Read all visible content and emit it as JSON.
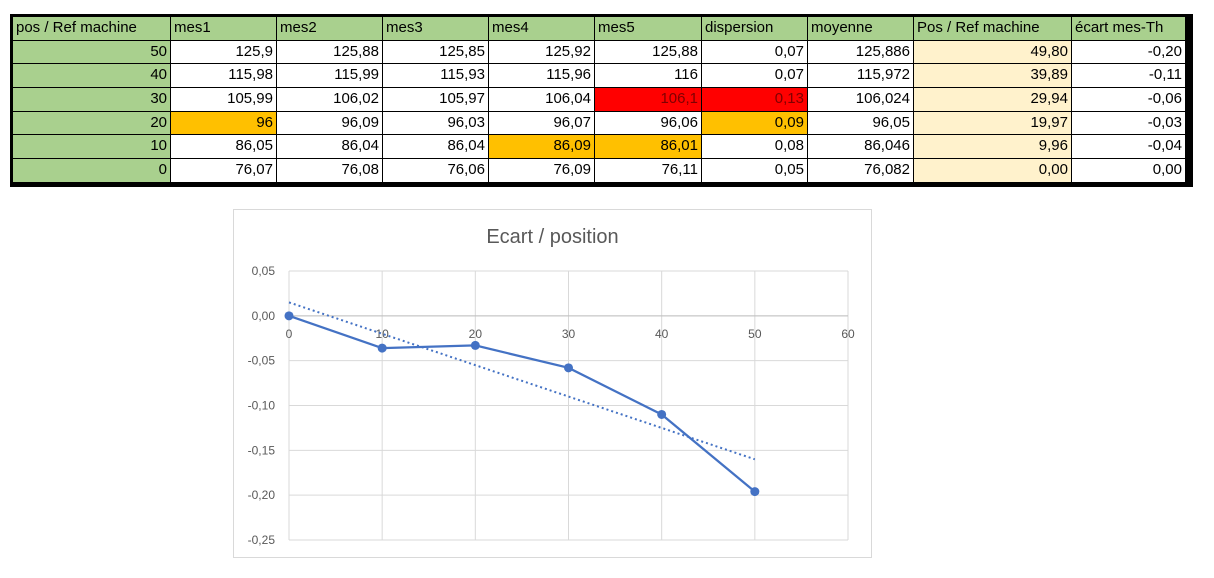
{
  "table": {
    "headers": [
      "pos / Ref machine",
      "mes1",
      "mes2",
      "mes3",
      "mes4",
      "mes5",
      "dispersion",
      "moyenne",
      "Pos / Ref machine",
      "écart mes-Th"
    ],
    "rows": [
      [
        "50",
        "125,9",
        "125,88",
        "125,85",
        "125,92",
        "125,88",
        "0,07",
        "125,886",
        "49,80",
        "-0,20"
      ],
      [
        "40",
        "115,98",
        "115,99",
        "115,93",
        "115,96",
        "116",
        "0,07",
        "115,972",
        "39,89",
        "-0,11"
      ],
      [
        "30",
        "105,99",
        "106,02",
        "105,97",
        "106,04",
        "106,1",
        "0,13",
        "106,024",
        "29,94",
        "-0,06"
      ],
      [
        "20",
        "96",
        "96,09",
        "96,03",
        "96,07",
        "96,06",
        "0,09",
        "96,05",
        "19,97",
        "-0,03"
      ],
      [
        "10",
        "86,05",
        "86,04",
        "86,04",
        "86,09",
        "86,01",
        "0,08",
        "86,046",
        "9,96",
        "-0,04"
      ],
      [
        "0",
        "76,07",
        "76,08",
        "76,06",
        "76,09",
        "76,11",
        "0,05",
        "76,082",
        "0,00",
        "0,00"
      ]
    ],
    "highlights": [
      {
        "row": 2,
        "col": 5,
        "color": "red"
      },
      {
        "row": 2,
        "col": 6,
        "color": "red"
      },
      {
        "row": 3,
        "col": 1,
        "color": "orange"
      },
      {
        "row": 3,
        "col": 6,
        "color": "orange"
      },
      {
        "row": 4,
        "col": 4,
        "color": "orange"
      },
      {
        "row": 4,
        "col": 5,
        "color": "orange"
      }
    ],
    "colors": {
      "header_green": "#a9d08e",
      "cream": "#fff2cc",
      "orange": "#ffc000",
      "red": "#ff0000"
    }
  },
  "chart_data": {
    "type": "line",
    "title": "Ecart / position",
    "xlabel": "",
    "ylabel": "",
    "xlim": [
      0,
      60
    ],
    "ylim": [
      -0.25,
      0.05
    ],
    "x_ticks": [
      "0",
      "10",
      "20",
      "30",
      "40",
      "50",
      "60"
    ],
    "y_ticks": [
      "0,05",
      "0,00",
      "-0,05",
      "-0,10",
      "-0,15",
      "-0,20",
      "-0,25"
    ],
    "grid": true,
    "series": [
      {
        "x": [
          0,
          10,
          20,
          30,
          40,
          50
        ],
        "y": [
          0.0,
          -0.036,
          -0.033,
          -0.058,
          -0.11,
          -0.196
        ],
        "color": "#4472c4",
        "markers": true
      }
    ],
    "trendline": {
      "type": "linear",
      "x": [
        0,
        50
      ],
      "y": [
        0.015,
        -0.16
      ],
      "color": "#4472c4",
      "style": "dotted"
    }
  }
}
